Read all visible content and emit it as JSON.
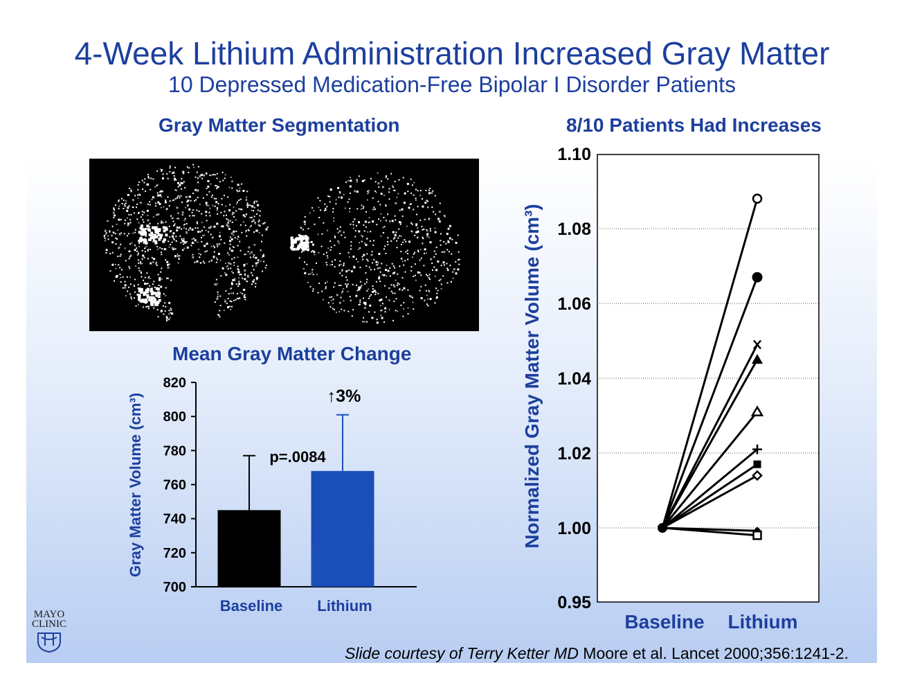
{
  "title": "4-Week Lithium Administration Increased Gray Matter",
  "subtitle": "10 Depressed Medication-Free Bipolar I Disorder Patients",
  "segmentation": {
    "title": "Gray Matter Segmentation"
  },
  "footer": {
    "credit": "Slide courtesy of Terry Ketter MD",
    "citation": " Moore et al. Lancet 2000;356:1241-2."
  },
  "logo": {
    "line1": "MAYO",
    "line2": "CLINIC",
    "icon": "mayo-shield-icon"
  },
  "colors": {
    "title_blue": "#1c3f9e",
    "baseline_bar": "#000000",
    "lithium_bar": "#1a4fb8"
  },
  "chart_data": [
    {
      "type": "bar",
      "title": "Mean Gray Matter Change",
      "categories": [
        "Baseline",
        "Lithium"
      ],
      "values": [
        745,
        768
      ],
      "error_upper": [
        777,
        801
      ],
      "ylabel": "Gray Matter Volume (cm³)",
      "xlabel": "",
      "ylim": [
        700,
        820
      ],
      "yticks": [
        700,
        720,
        740,
        760,
        780,
        800,
        820
      ],
      "annotations": {
        "p_value": "p=.0084",
        "change": "↑3%"
      },
      "grid": false
    },
    {
      "type": "line",
      "title": "8/10 Patients Had Increases",
      "categories": [
        "Baseline",
        "Lithium"
      ],
      "ylabel": "Normalized Gray Matter Volume (cm³)",
      "xlabel": "",
      "ylim": [
        0.95,
        1.1
      ],
      "yticks": [
        "0.95",
        "1.00",
        "1.02",
        "1.04",
        "1.06",
        "1.08",
        "1.10"
      ],
      "grid": true,
      "series": [
        {
          "marker": "open-circle",
          "values": [
            1.0,
            1.088
          ]
        },
        {
          "marker": "filled-circle",
          "values": [
            1.0,
            1.067
          ]
        },
        {
          "marker": "x",
          "values": [
            1.0,
            1.049
          ]
        },
        {
          "marker": "filled-triangle",
          "values": [
            1.0,
            1.045
          ]
        },
        {
          "marker": "open-triangle",
          "values": [
            1.0,
            1.031
          ]
        },
        {
          "marker": "plus",
          "values": [
            1.0,
            1.021
          ]
        },
        {
          "marker": "filled-square",
          "values": [
            1.0,
            1.017
          ]
        },
        {
          "marker": "open-diamond",
          "values": [
            1.0,
            1.014
          ]
        },
        {
          "marker": "filled-diamond",
          "values": [
            1.0,
            0.998
          ]
        },
        {
          "marker": "open-square",
          "values": [
            1.0,
            0.995
          ]
        }
      ]
    }
  ]
}
